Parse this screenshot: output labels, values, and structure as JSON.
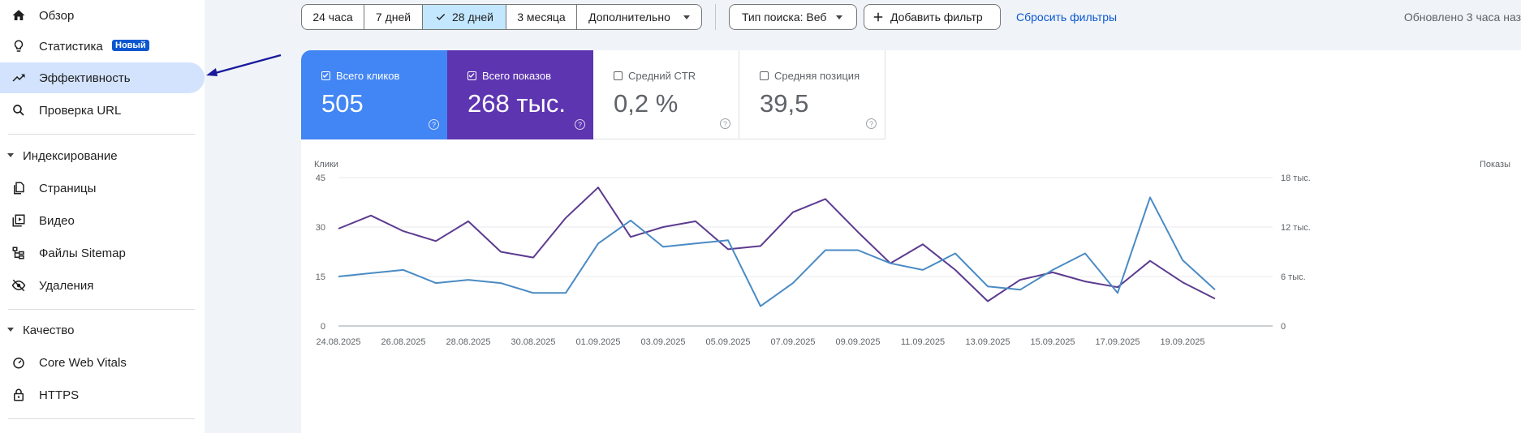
{
  "sidebar": {
    "items": [
      {
        "label": "Обзор",
        "icon": "home-icon"
      },
      {
        "label": "Статистика",
        "icon": "lightbulb-icon",
        "badge": "Новый"
      },
      {
        "label": "Эффективность",
        "icon": "trending-up-icon",
        "active": true
      },
      {
        "label": "Проверка URL",
        "icon": "search-icon"
      }
    ],
    "sections": [
      {
        "title": "Индексирование",
        "items": [
          {
            "label": "Страницы",
            "icon": "pages-icon"
          },
          {
            "label": "Видео",
            "icon": "video-icon"
          },
          {
            "label": "Файлы Sitemap",
            "icon": "sitemap-icon"
          },
          {
            "label": "Удаления",
            "icon": "visibility-off-icon"
          }
        ]
      },
      {
        "title": "Качество",
        "items": [
          {
            "label": "Core Web Vitals",
            "icon": "speed-gauge-icon"
          },
          {
            "label": "HTTPS",
            "icon": "lock-icon"
          }
        ]
      }
    ]
  },
  "toolbar": {
    "ranges": [
      "24 часа",
      "7 дней",
      "28 дней",
      "3 месяца",
      "Дополнительно"
    ],
    "selected_range": "28 дней",
    "search_type": "Тип поиска: Веб",
    "add_filter": "Добавить фильтр",
    "reset_filters": "Сбросить фильтры",
    "updated": "Обновлено 3 часа наз"
  },
  "metrics": [
    {
      "label": "Всего кликов",
      "value": "505",
      "checked": true,
      "color": "#4285f4"
    },
    {
      "label": "Всего показов",
      "value": "268 тыс.",
      "checked": true,
      "color": "#5e35b1"
    },
    {
      "label": "Средний CTR",
      "value": "0,2 %",
      "checked": false
    },
    {
      "label": "Средняя позиция",
      "value": "39,5",
      "checked": false
    }
  ],
  "chart_data": {
    "type": "line",
    "x": [
      "24.08.2025",
      "25.08.2025",
      "26.08.2025",
      "27.08.2025",
      "28.08.2025",
      "29.08.2025",
      "30.08.2025",
      "31.08.2025",
      "01.09.2025",
      "02.09.2025",
      "03.09.2025",
      "04.09.2025",
      "05.09.2025",
      "06.09.2025",
      "07.09.2025",
      "08.09.2025",
      "09.09.2025",
      "10.09.2025",
      "11.09.2025",
      "12.09.2025",
      "13.09.2025",
      "14.09.2025",
      "15.09.2025",
      "16.09.2025",
      "17.09.2025",
      "18.09.2025",
      "19.09.2025",
      "20.09.2025"
    ],
    "x_tick_labels": [
      "24.08.2025",
      "26.08.2025",
      "28.08.2025",
      "30.08.2025",
      "01.09.2025",
      "03.09.2025",
      "05.09.2025",
      "07.09.2025",
      "09.09.2025",
      "11.09.2025",
      "13.09.2025",
      "15.09.2025",
      "17.09.2025",
      "19.09.2025"
    ],
    "left_axis": {
      "label": "Клики",
      "ticks": [
        "0",
        "15",
        "30",
        "45"
      ],
      "range": [
        0,
        45
      ]
    },
    "right_axis": {
      "label": "Показы",
      "ticks": [
        "0",
        "6 тыс.",
        "12 тыс.",
        "18 тыс."
      ],
      "range": [
        0,
        18000
      ]
    },
    "grid": true,
    "series": [
      {
        "name": "Всего кликов",
        "axis": "left",
        "color": "#4285f4",
        "values": [
          15,
          16,
          17,
          13,
          14,
          13,
          10,
          10,
          25,
          32,
          24,
          25,
          26,
          6,
          13,
          23,
          23,
          19,
          17,
          22,
          12,
          11,
          17,
          22,
          10,
          39,
          20,
          11
        ]
      },
      {
        "name": "Всего показов",
        "axis": "right",
        "color": "#5e35b1",
        "values": [
          11800,
          13400,
          11500,
          10300,
          12700,
          9000,
          8300,
          13100,
          16800,
          10800,
          12000,
          12700,
          9300,
          9700,
          13800,
          15400,
          11400,
          7600,
          9900,
          6800,
          3000,
          5600,
          6500,
          5400,
          4700,
          7900,
          5300,
          3300
        ]
      }
    ]
  }
}
